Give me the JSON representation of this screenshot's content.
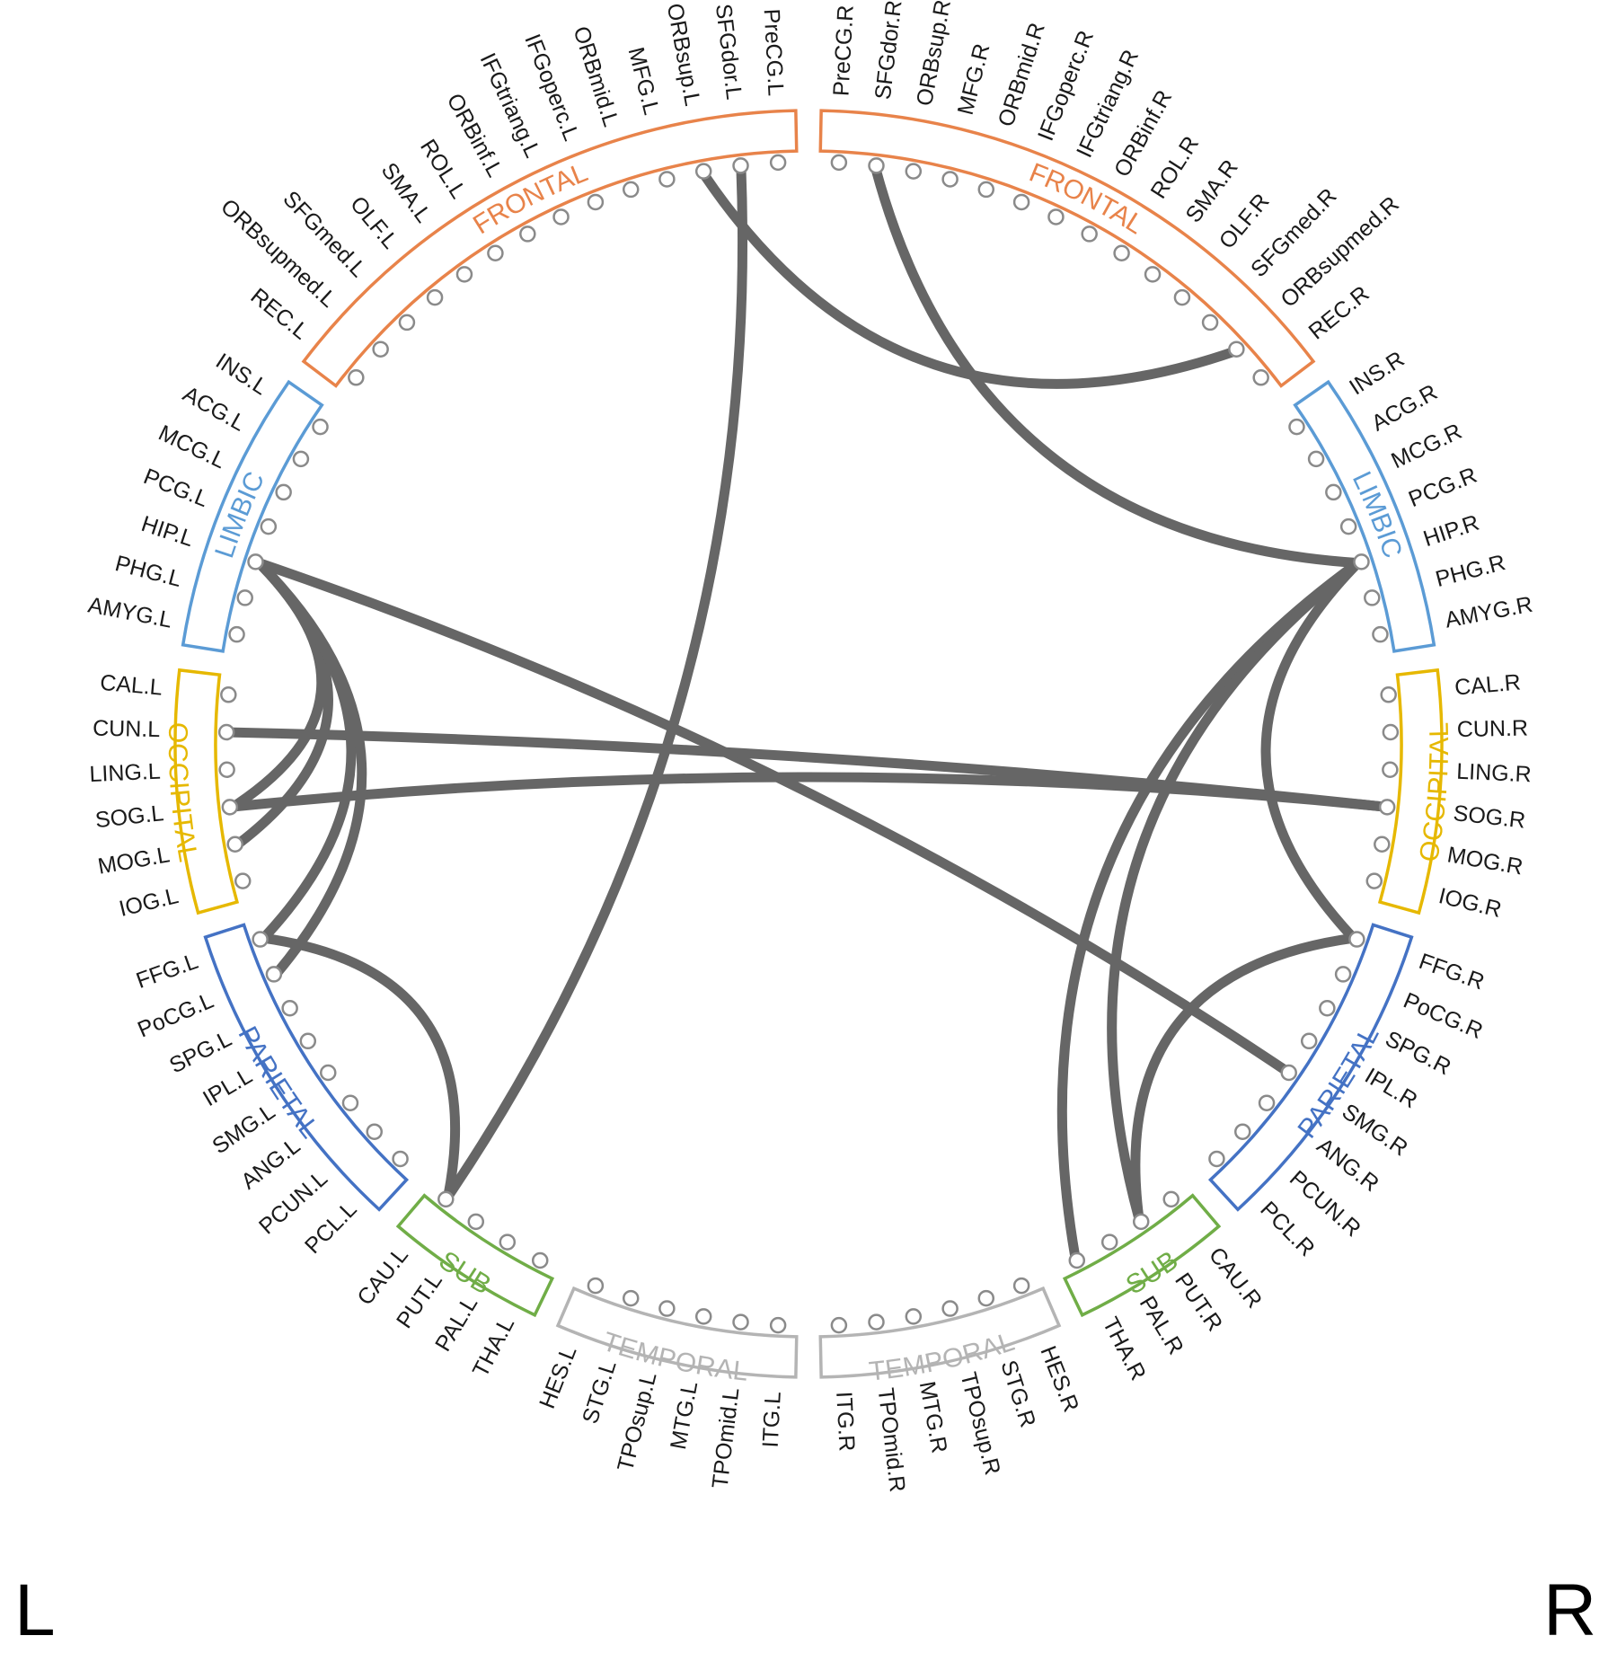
{
  "sides": {
    "left": "L",
    "right": "R"
  },
  "colors": {
    "connection": "#666666",
    "node_stroke": "#8a8a8a",
    "label": "#1a1a1a",
    "FRONTAL": "#e8834a",
    "LIMBIC": "#5b9bd5",
    "OCCIPITAL": "#e6b800",
    "PARIETAL": "#4472c4",
    "SUB": "#70ad47",
    "TEMPORAL": "#b4b4b4"
  },
  "regions": [
    {
      "name": "FRONTAL",
      "side": "L",
      "color_key": "FRONTAL",
      "nodes": [
        "PreCG.L",
        "SFGdor.L",
        "ORBsup.L",
        "MFG.L",
        "ORBmid.L",
        "IFGoperc.L",
        "IFGtriang.L",
        "ORBinf.L",
        "ROL.L",
        "SMA.L",
        "OLF.L",
        "SFGmed.L",
        "ORBsupmed.L",
        "REC.L"
      ]
    },
    {
      "name": "LIMBIC",
      "side": "L",
      "color_key": "LIMBIC",
      "nodes": [
        "INS.L",
        "ACG.L",
        "MCG.L",
        "PCG.L",
        "HIP.L",
        "PHG.L",
        "AMYG.L"
      ]
    },
    {
      "name": "OCCIPITAL",
      "side": "L",
      "color_key": "OCCIPITAL",
      "nodes": [
        "CAL.L",
        "CUN.L",
        "LING.L",
        "SOG.L",
        "MOG.L",
        "IOG.L"
      ]
    },
    {
      "name": "PARIETAL",
      "side": "L",
      "color_key": "PARIETAL",
      "nodes": [
        "FFG.L",
        "PoCG.L",
        "SPG.L",
        "IPL.L",
        "SMG.L",
        "ANG.L",
        "PCUN.L",
        "PCL.L"
      ]
    },
    {
      "name": "SUB",
      "side": "L",
      "color_key": "SUB",
      "nodes": [
        "CAU.L",
        "PUT.L",
        "PAL.L",
        "THA.L"
      ]
    },
    {
      "name": "TEMPORAL",
      "side": "L",
      "color_key": "TEMPORAL",
      "nodes": [
        "HES.L",
        "STG.L",
        "TPOsup.L",
        "MTG.L",
        "TPOmid.L",
        "ITG.L"
      ]
    },
    {
      "name": "TEMPORAL",
      "side": "R",
      "color_key": "TEMPORAL",
      "nodes": [
        "ITG.R",
        "TPOmid.R",
        "MTG.R",
        "TPOsup.R",
        "STG.R",
        "HES.R"
      ]
    },
    {
      "name": "SUB",
      "side": "R",
      "color_key": "SUB",
      "nodes": [
        "THA.R",
        "PAL.R",
        "PUT.R",
        "CAU.R"
      ]
    },
    {
      "name": "PARIETAL",
      "side": "R",
      "color_key": "PARIETAL",
      "nodes": [
        "PCL.R",
        "PCUN.R",
        "ANG.R",
        "SMG.R",
        "IPL.R",
        "SPG.R",
        "PoCG.R",
        "FFG.R"
      ]
    },
    {
      "name": "OCCIPITAL",
      "side": "R",
      "color_key": "OCCIPITAL",
      "nodes": [
        "IOG.R",
        "MOG.R",
        "SOG.R",
        "LING.R",
        "CUN.R",
        "CAL.R"
      ]
    },
    {
      "name": "LIMBIC",
      "side": "R",
      "color_key": "LIMBIC",
      "nodes": [
        "AMYG.R",
        "PHG.R",
        "HIP.R",
        "PCG.R",
        "MCG.R",
        "ACG.R",
        "INS.R"
      ]
    },
    {
      "name": "FRONTAL",
      "side": "R",
      "color_key": "FRONTAL",
      "nodes": [
        "REC.R",
        "ORBsupmed.R",
        "SFGmed.R",
        "OLF.R",
        "SMA.R",
        "ROL.R",
        "ORBinf.R",
        "IFGtriang.R",
        "IFGoperc.R",
        "ORBmid.R",
        "MFG.R",
        "ORBsup.R",
        "SFGdor.R",
        "PreCG.R"
      ]
    }
  ],
  "connections": [
    [
      "SFGdor.L",
      "CAU.L"
    ],
    [
      "SFGdor.R",
      "HIP.R"
    ],
    [
      "ORBsup.L",
      "ORBsupmed.R"
    ],
    [
      "HIP.L",
      "SOG.L"
    ],
    [
      "HIP.L",
      "MOG.L"
    ],
    [
      "HIP.L",
      "FFG.L"
    ],
    [
      "HIP.L",
      "PoCG.L"
    ],
    [
      "HIP.L",
      "SMG.R"
    ],
    [
      "HIP.R",
      "THA.R"
    ],
    [
      "HIP.R",
      "PUT.R"
    ],
    [
      "HIP.R",
      "FFG.R"
    ],
    [
      "CUN.L",
      "SOG.R"
    ],
    [
      "SOG.L",
      "SOG.R"
    ],
    [
      "FFG.L",
      "CAU.L"
    ],
    [
      "FFG.R",
      "PUT.R"
    ]
  ]
}
